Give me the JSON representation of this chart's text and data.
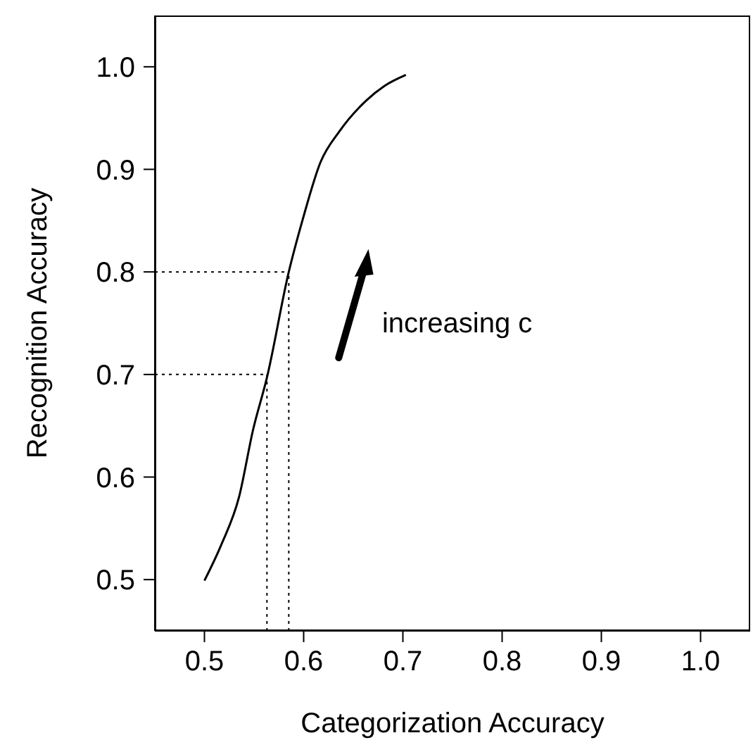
{
  "chart_data": {
    "type": "line",
    "xlabel": "Categorization Accuracy",
    "ylabel": "Recognition Accuracy",
    "x": [
      0.5,
      0.517,
      0.535,
      0.549,
      0.563,
      0.585,
      0.599,
      0.617,
      0.636,
      0.663,
      0.681,
      0.703
    ],
    "series": [
      {
        "color": "#000000",
        "values": [
          0.499,
          0.534,
          0.581,
          0.646,
          0.697,
          0.8,
          0.851,
          0.907,
          0.937,
          0.967,
          0.981,
          0.992
        ]
      }
    ],
    "xlim": [
      0.45,
      1.05
    ],
    "xticks": [
      {
        "value": 0.5,
        "label": "0.5"
      },
      {
        "value": 0.6,
        "label": "0.6"
      },
      {
        "value": 0.7,
        "label": "0.7"
      },
      {
        "value": 0.8,
        "label": "0.8"
      },
      {
        "value": 0.9,
        "label": "0.9"
      },
      {
        "value": 1.0,
        "label": "1.0"
      }
    ],
    "ylim": [
      0.45,
      1.05
    ],
    "yticks": [
      {
        "value": 0.5,
        "label": "0.5"
      },
      {
        "value": 0.6,
        "label": "0.6"
      },
      {
        "value": 0.7,
        "label": "0.7"
      },
      {
        "value": 0.8,
        "label": "0.8"
      },
      {
        "value": 0.9,
        "label": "0.9"
      },
      {
        "value": 1.0,
        "label": "1.0"
      }
    ],
    "ref_lines": [
      {
        "axis": "y",
        "value": 0.8,
        "line_style": "dotted"
      },
      {
        "axis": "y",
        "value": 0.7,
        "line_style": "dotted"
      },
      {
        "axis": "x",
        "value": 0.585,
        "line_style": "dotted"
      },
      {
        "axis": "x",
        "value": 0.563,
        "line_style": "dotted"
      }
    ],
    "annotations": [
      "increasing c"
    ],
    "marker": "none",
    "line_style": "solid"
  }
}
